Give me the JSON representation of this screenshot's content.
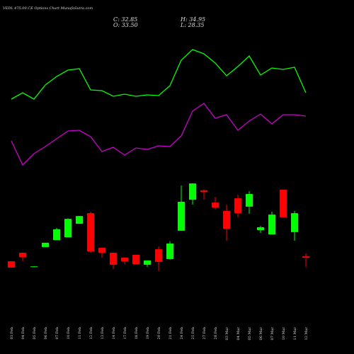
{
  "chart_data": {
    "type": "candlestick",
    "title": "VEDL 475.00 CE Options Chart MunafaSutra.com",
    "ohlc_text": [
      "C: 32.85",
      "H: 34.95",
      "O: 33.50",
      "L: 28.35"
    ],
    "categories": [
      "03 Feb",
      "04 Feb",
      "05 Feb",
      "06 Feb",
      "07 Feb",
      "10 Feb",
      "11 Feb",
      "12 Feb",
      "13 Feb",
      "14 Feb",
      "17 Feb",
      "18 Feb",
      "19 Feb",
      "20 Feb",
      "21 Feb",
      "24 Feb",
      "25 Feb",
      "27 Feb",
      "28 Feb",
      "03 Mar",
      "04 Mar",
      "05 Mar",
      "06 Mar",
      "07 Mar",
      "10 Mar",
      "11 Mar",
      "12 Mar"
    ],
    "open": [
      31.1,
      35.3,
      28.4,
      38.1,
      41.5,
      42.9,
      49.5,
      54.7,
      37.7,
      35.3,
      32.9,
      34.3,
      29.4,
      37.0,
      32.2,
      46.1,
      61.3,
      65.9,
      59.9,
      55.8,
      62.0,
      57.9,
      46.4,
      44.3,
      66.2,
      45.4,
      33.5
    ],
    "high": [
      31.1,
      35.3,
      28.7,
      40.2,
      47.5,
      52.2,
      53.3,
      55.4,
      37.7,
      35.3,
      32.9,
      34.3,
      31.5,
      38.4,
      40.9,
      68.3,
      69.3,
      66.5,
      62.7,
      58.9,
      63.8,
      65.5,
      48.5,
      55.4,
      66.2,
      55.8,
      34.95
    ],
    "low": [
      28.0,
      31.1,
      28.3,
      38.1,
      41.5,
      42.9,
      49.5,
      35.3,
      32.9,
      27.3,
      29.7,
      29.7,
      28.4,
      26.3,
      31.8,
      46.1,
      58.9,
      61.3,
      56.5,
      41.2,
      52.7,
      54.4,
      45.0,
      44.3,
      52.7,
      41.2,
      28.35
    ],
    "close": [
      28.0,
      33.2,
      28.6,
      40.2,
      46.8,
      51.9,
      53.3,
      36.0,
      35.3,
      29.4,
      31.1,
      29.7,
      31.5,
      30.8,
      39.8,
      60.3,
      69.3,
      65.2,
      57.5,
      47.1,
      54.7,
      64.1,
      47.8,
      54.0,
      52.7,
      54.7,
      32.85
    ],
    "up_color": "#00ff00",
    "down_color": "#ff0000",
    "ylim": [
      20,
      72.45
    ],
    "indicator_ylim": [
      0,
      500
    ],
    "indicators": [
      {
        "color": "#00ff00",
        "values": [
          360,
          369,
          360,
          380,
          392,
          401,
          403,
          373,
          372,
          364,
          367,
          364,
          366,
          365,
          379,
          415,
          430,
          424,
          411,
          393,
          406,
          421,
          394,
          404,
          402,
          405,
          369
        ]
      },
      {
        "color": "#cc00cc",
        "values": [
          301,
          267,
          283,
          293,
          304,
          315,
          316,
          307,
          286,
          292,
          281,
          291,
          289,
          294,
          293,
          308,
          343,
          354,
          333,
          338,
          316,
          329,
          339,
          325,
          338,
          338,
          336
        ]
      }
    ]
  }
}
